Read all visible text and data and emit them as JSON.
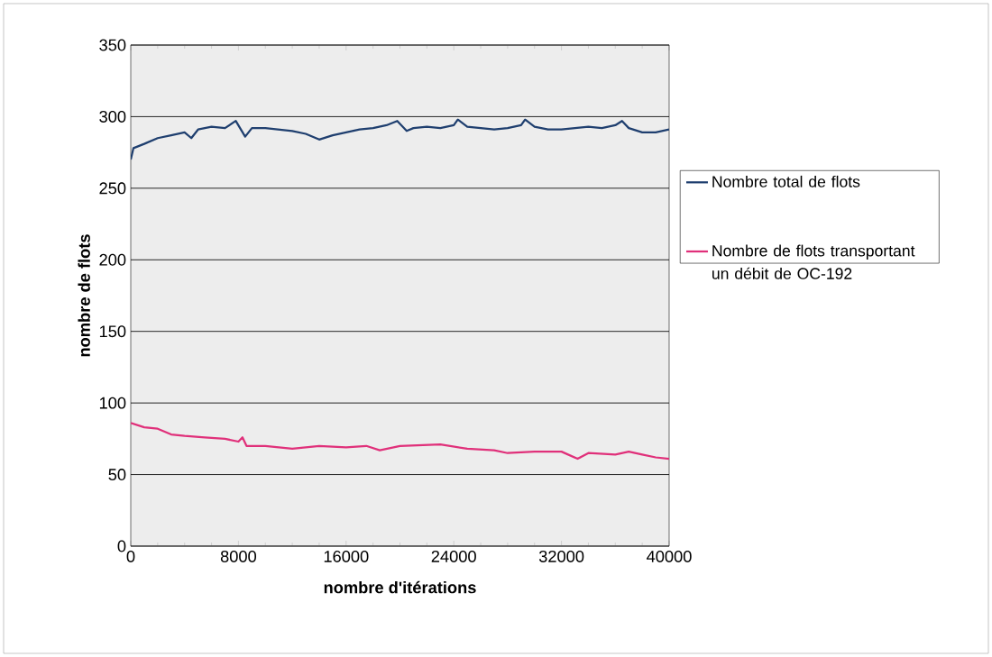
{
  "chart_data": {
    "type": "line",
    "xlabel": "nombre d'itérations",
    "ylabel": "nombre de flots",
    "xlim": [
      0,
      40000
    ],
    "xticks": [
      0,
      8000,
      16000,
      24000,
      32000,
      40000
    ],
    "ylim": [
      0,
      350
    ],
    "yticks": [
      0,
      50,
      100,
      150,
      200,
      250,
      300,
      350
    ],
    "grid": "y",
    "legend": "right",
    "marker": "none",
    "line_style": "solid",
    "series": [
      {
        "name": "Nombre total de flots",
        "color": "#1f3f6f",
        "x": [
          0,
          200,
          1000,
          2000,
          3000,
          4000,
          4500,
          5000,
          6000,
          7000,
          7800,
          8500,
          9000,
          10000,
          11000,
          12000,
          13000,
          14000,
          15000,
          16000,
          17000,
          18000,
          19000,
          19800,
          20500,
          21000,
          22000,
          23000,
          24000,
          24300,
          25000,
          26000,
          27000,
          28000,
          29000,
          29300,
          30000,
          31000,
          32000,
          33000,
          34000,
          35000,
          36000,
          36500,
          37000,
          38000,
          39000,
          40000
        ],
        "values": [
          270,
          278,
          281,
          285,
          287,
          289,
          285,
          291,
          293,
          292,
          297,
          286,
          292,
          292,
          291,
          290,
          288,
          284,
          287,
          289,
          291,
          292,
          294,
          297,
          290,
          292,
          293,
          292,
          294,
          298,
          293,
          292,
          291,
          292,
          294,
          298,
          293,
          291,
          291,
          292,
          293,
          292,
          294,
          297,
          292,
          289,
          289,
          291
        ]
      },
      {
        "name": "Nombre de flots transportant un débit de OC-192",
        "color": "#e0307a",
        "x": [
          0,
          1000,
          2000,
          3000,
          4000,
          5500,
          7000,
          8000,
          8300,
          8600,
          10000,
          12000,
          14000,
          16000,
          17500,
          18500,
          20000,
          23000,
          25000,
          27000,
          28000,
          30000,
          32000,
          33200,
          34000,
          36000,
          37000,
          38000,
          39000,
          40000
        ],
        "values": [
          86,
          83,
          82,
          78,
          77,
          76,
          75,
          73,
          76,
          70,
          70,
          68,
          70,
          69,
          70,
          67,
          70,
          71,
          68,
          67,
          65,
          66,
          66,
          61,
          65,
          64,
          66,
          64,
          62,
          61
        ]
      }
    ]
  }
}
